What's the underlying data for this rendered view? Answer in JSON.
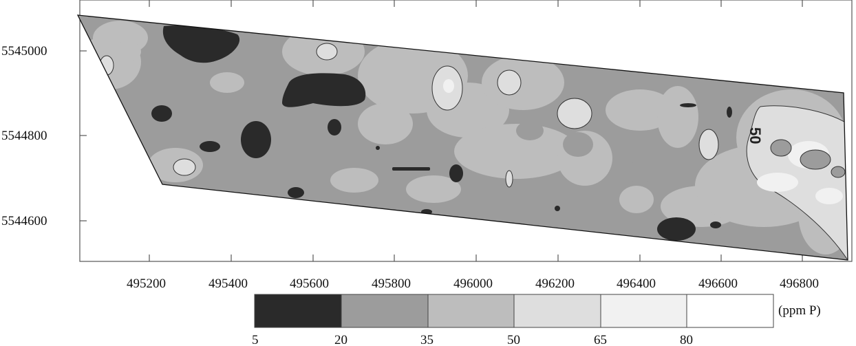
{
  "axes": {
    "x_ticks": [
      "495200",
      "495400",
      "495600",
      "495800",
      "496000",
      "496200",
      "496400",
      "496600",
      "496800"
    ],
    "y_ticks": [
      "5545000",
      "5544800",
      "5544600"
    ]
  },
  "contour_label": "50",
  "legend": {
    "unit": "(ppm P)",
    "breaks": [
      "5",
      "20",
      "35",
      "50",
      "65",
      "80"
    ],
    "classes": [
      {
        "range": "5-20",
        "color": "#2a2a2a"
      },
      {
        "range": "20-35",
        "color": "#9c9c9c"
      },
      {
        "range": "35-50",
        "color": "#bdbdbd"
      },
      {
        "range": "50-65",
        "color": "#dedede"
      },
      {
        "range": "65-80",
        "color": "#f1f1f1"
      },
      {
        "range": ">80",
        "color": "#ffffff"
      }
    ]
  },
  "colors": {
    "c5_20": "#2a2a2a",
    "c20_35": "#9c9c9c",
    "c35_50": "#bdbdbd",
    "c50_65": "#dedede",
    "c65_80": "#f1f1f1",
    "c80": "#ffffff"
  }
}
